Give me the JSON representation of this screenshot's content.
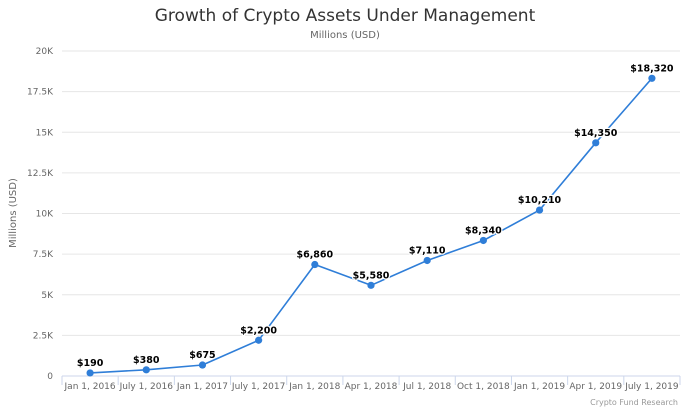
{
  "chart_data": {
    "type": "line",
    "title": "Growth of Crypto Assets Under Management",
    "subtitle": "Millions (USD)",
    "ylabel": "Millions (USD)",
    "xlabel": "",
    "credit": "Crypto Fund Research",
    "categories": [
      "Jan 1, 2016",
      "July 1, 2016",
      "Jan 1, 2017",
      "July 1, 2017",
      "Jan 1, 2018",
      "Apr 1, 2018",
      "Jul 1, 2018",
      "Oct 1, 2018",
      "Jan 1, 2019",
      "Apr 1, 2019",
      "July 1, 2019"
    ],
    "series": [
      {
        "values": [
          190,
          380,
          675,
          2200,
          6860,
          5580,
          7110,
          8340,
          10210,
          14350,
          18320
        ],
        "data_labels": [
          "$190",
          "$380",
          "$675",
          "$2,200",
          "$6,860",
          "$5,580",
          "$7,110",
          "$8,340",
          "$10,210",
          "$14,350",
          "$18,320"
        ],
        "color": "#2f7ed8"
      }
    ],
    "ylim": [
      0,
      20000
    ],
    "yticks": [
      0,
      2500,
      5000,
      7500,
      10000,
      12500,
      15000,
      17500,
      20000
    ],
    "ytick_labels": [
      "0",
      "2.5K",
      "5K",
      "7.5K",
      "10K",
      "12.5K",
      "15K",
      "17.5K",
      "20K"
    ],
    "grid": true,
    "legend": "none"
  }
}
